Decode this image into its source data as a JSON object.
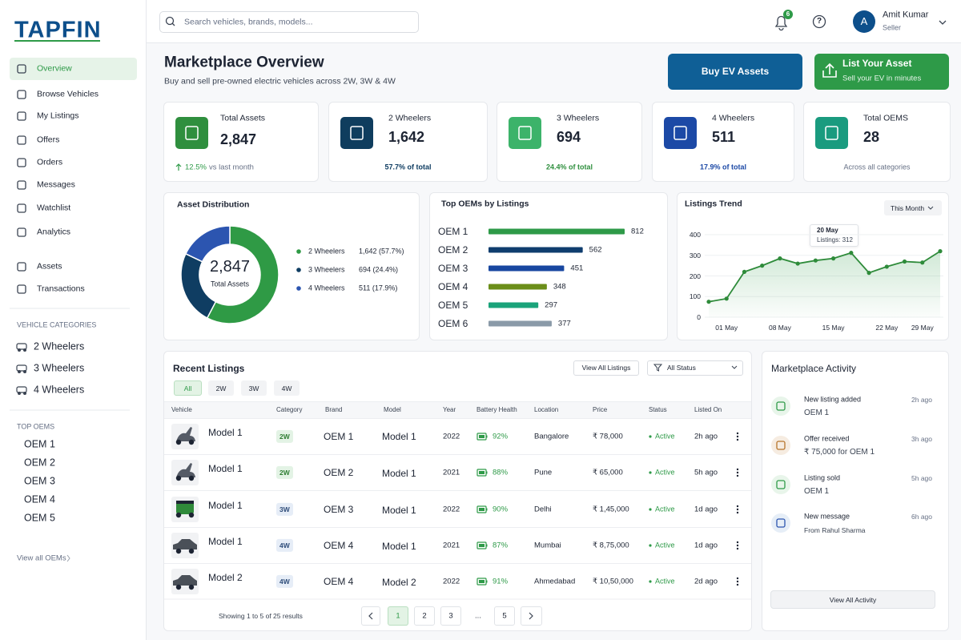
{
  "sidebar": {
    "logo": "TAPFIN",
    "nav": [
      "Overview",
      "Browse Vehicles",
      "My Listings",
      "Offers",
      "Orders",
      "Messages",
      "Watchlist",
      "Analytics"
    ],
    "nav2": [
      "Assets",
      "Transactions"
    ],
    "categories_title": "VEHICLE CATEGORIES",
    "categories": [
      "2 Wheelers",
      "3 Wheelers",
      "4 Wheelers"
    ],
    "oems_title": "TOP OEMS",
    "oems": [
      "OEM 1",
      "OEM 2",
      "OEM 3",
      "OEM 4",
      "OEM 5"
    ],
    "view_all": "View all OEMs"
  },
  "topbar": {
    "search_placeholder": "Search vehicles, brands, models...",
    "notifications": "6",
    "user_initial": "A",
    "user_name": "Amit Kumar",
    "user_role": "Seller"
  },
  "page": {
    "title": "Marketplace Overview",
    "subtitle": "Buy and sell pre-owned electric vehicles across 2W, 3W & 4W",
    "buy_button": "Buy EV Assets",
    "list_button": "List Your Asset",
    "list_sub": "Sell your EV in minutes"
  },
  "stats": [
    {
      "label": "Total Assets",
      "value": "2,847",
      "change": "12.5%",
      "note": "vs last month"
    },
    {
      "label": "2 Wheelers",
      "value": "1,642",
      "note": "57.7% of total"
    },
    {
      "label": "3 Wheelers",
      "value": "694",
      "note": "24.4% of total"
    },
    {
      "label": "4 Wheelers",
      "value": "511",
      "note": "17.9% of total"
    },
    {
      "label": "Total OEMS",
      "value": "28",
      "note": "Across all categories"
    }
  ],
  "chart_data": [
    {
      "type": "donut",
      "title": "Asset Distribution",
      "center_value": "2,847",
      "center_label": "Total Assets",
      "categories": [
        "2 Wheelers",
        "3 Wheelers",
        "4 Wheelers"
      ],
      "values": [
        1642,
        694,
        511
      ],
      "value_labels": [
        "1,642 (57.7%)",
        "694 (24.4%)",
        "511 (17.9%)"
      ],
      "colors": [
        "#2f9a45",
        "#0f3d62",
        "#2c55b0"
      ]
    },
    {
      "type": "hbar",
      "title": "Top OEMs by Listings",
      "categories": [
        "OEM 1",
        "OEM 2",
        "OEM 3",
        "OEM 4",
        "OEM 5",
        "OEM 6"
      ],
      "values": [
        812,
        562,
        451,
        348,
        297,
        377
      ],
      "colors": [
        "#2e9a48",
        "#0f3d6e",
        "#1847a0",
        "#6b8e1a",
        "#1aa37a",
        "#8a9aa8"
      ]
    },
    {
      "type": "line",
      "title": "Listings Trend",
      "dropdown": "This Month",
      "categories": [
        null,
        "01 May",
        null,
        null,
        "08 May",
        null,
        null,
        "15 May",
        null,
        null,
        "22 May",
        null,
        "29 May",
        null
      ],
      "values": [
        75,
        90,
        220,
        250,
        285,
        260,
        275,
        285,
        312,
        215,
        245,
        270,
        265,
        320
      ],
      "ylim": [
        0,
        400
      ],
      "yticks": [
        0,
        100,
        200,
        300,
        400
      ],
      "color": "#2e8b3a",
      "tooltip": {
        "date": "20 May",
        "label": "Listings: 312"
      }
    }
  ],
  "table": {
    "title": "Recent Listings",
    "filters": [
      "All",
      "2W",
      "3W",
      "4W"
    ],
    "view_all": "View All Listings",
    "status_filter": "All Status",
    "columns": [
      "Vehicle",
      "Category",
      "Brand",
      "Model",
      "Year",
      "Battery Health",
      "Location",
      "Price",
      "Status",
      "Listed On"
    ],
    "rows": [
      [
        "Model 1",
        "2W",
        "OEM 1",
        "Model 1",
        "2022",
        "92%",
        "Bangalore",
        "₹ 78,000",
        "Active",
        "2h ago"
      ],
      [
        "Model 1",
        "2W",
        "OEM 2",
        "Model 1",
        "2021",
        "88%",
        "Pune",
        "₹ 65,000",
        "Active",
        "5h ago"
      ],
      [
        "Model 1",
        "3W",
        "OEM 3",
        "Model 1",
        "2022",
        "90%",
        "Delhi",
        "₹ 1,45,000",
        "Active",
        "1d ago"
      ],
      [
        "Model 1",
        "4W",
        "OEM 4",
        "Model 1",
        "2021",
        "87%",
        "Mumbai",
        "₹ 8,75,000",
        "Active",
        "1d ago"
      ],
      [
        "Model 2",
        "4W",
        "OEM 4",
        "Model 2",
        "2022",
        "91%",
        "Ahmedabad",
        "₹ 10,50,000",
        "Active",
        "2d ago"
      ]
    ],
    "footer": "Showing 1 to 5 of 25 results",
    "pages": [
      "1",
      "2",
      "3",
      "...",
      "5"
    ]
  },
  "activity": {
    "title": "Marketplace Activity",
    "items": [
      {
        "title": "New listing added",
        "detail": "OEM 1",
        "time": "2h ago"
      },
      {
        "title": "Offer received",
        "detail": "₹ 75,000 for  OEM 1",
        "time": "3h ago"
      },
      {
        "title": "Listing sold",
        "detail": "OEM 1",
        "time": "5h ago"
      },
      {
        "title": "New message",
        "detail": "From Rahul Sharma",
        "time": "6h ago"
      }
    ],
    "button": "View All Activity"
  }
}
